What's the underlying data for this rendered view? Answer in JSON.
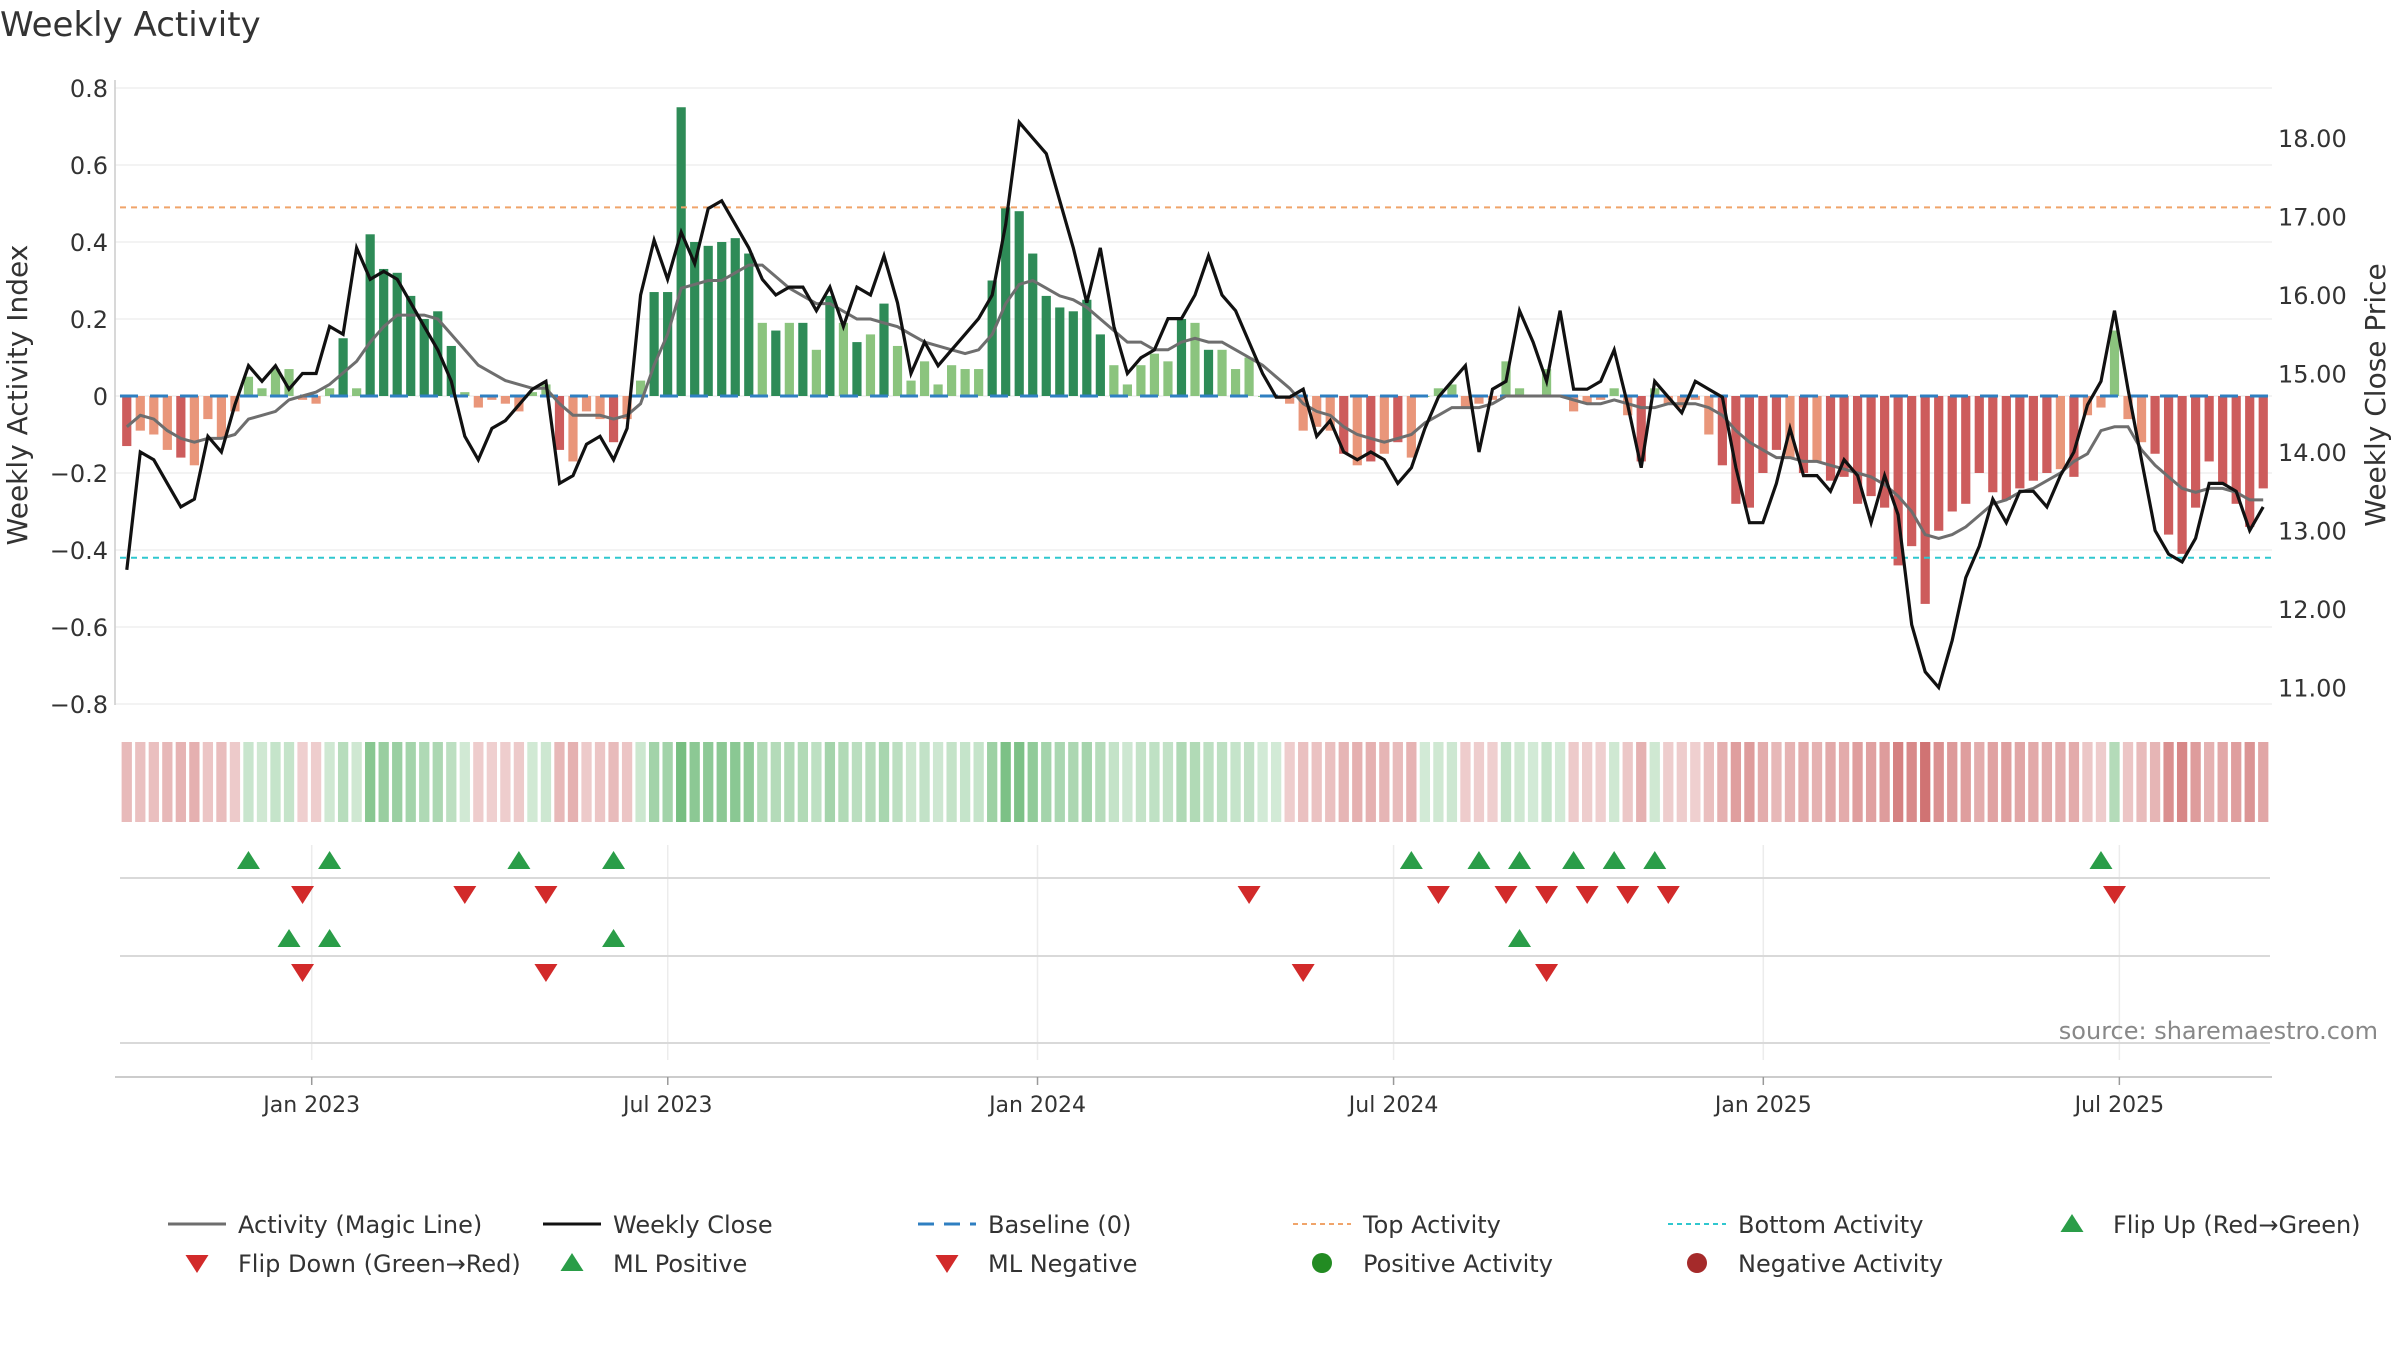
{
  "chart_data": {
    "type": "bar",
    "title": "Weekly Activity",
    "ylabel_left": "Weekly Activity Index",
    "ylabel_right": "Weekly Close Price",
    "source": "source: sharemaestro.com",
    "ylim_left": [
      -0.8,
      0.8
    ],
    "yticks_left": [
      0.8,
      0.6,
      0.4,
      0.2,
      0,
      -0.2,
      -0.4,
      -0.6,
      -0.8
    ],
    "yticks_left_labels": [
      "0.8",
      "0.6",
      "0.4",
      "0.2",
      "0",
      "−0.2",
      "−0.4",
      "−0.6",
      "−0.8"
    ],
    "ylim_right": [
      10.8,
      18.8
    ],
    "yticks_right": [
      18,
      17,
      16,
      15,
      14,
      13,
      12,
      11
    ],
    "yticks_right_labels": [
      "18.00",
      "17.00",
      "16.00",
      "15.00",
      "14.00",
      "13.00",
      "12.00",
      "11.00"
    ],
    "xticks": [
      {
        "week": 14,
        "label": "Jan 2023"
      },
      {
        "week": 40,
        "label": "Jul 2023"
      },
      {
        "week": 67,
        "label": "Jan 2024"
      },
      {
        "week": 93,
        "label": "Jul 2024"
      },
      {
        "week": 120,
        "label": "Jan 2025"
      },
      {
        "week": 146,
        "label": "Jul 2025"
      }
    ],
    "x_range_weeks": [
      0,
      157
    ],
    "top_activity": 0.49,
    "bottom_activity": -0.42,
    "baseline": 0,
    "activity": [
      -0.13,
      -0.09,
      -0.1,
      -0.14,
      -0.16,
      -0.18,
      -0.06,
      -0.11,
      -0.04,
      0.05,
      0.02,
      0.07,
      0.07,
      -0.01,
      -0.02,
      0.02,
      0.15,
      0.02,
      0.42,
      0.33,
      0.32,
      0.26,
      0.2,
      0.22,
      0.13,
      0.01,
      -0.03,
      -0.01,
      -0.02,
      -0.04,
      0.01,
      0.03,
      -0.14,
      -0.17,
      -0.04,
      -0.06,
      -0.12,
      -0.06,
      0.04,
      0.27,
      0.27,
      0.75,
      0.4,
      0.39,
      0.4,
      0.41,
      0.37,
      0.19,
      0.17,
      0.19,
      0.19,
      0.12,
      0.26,
      0.19,
      0.14,
      0.16,
      0.24,
      0.13,
      0.04,
      0.09,
      0.03,
      0.08,
      0.07,
      0.07,
      0.3,
      0.49,
      0.48,
      0.37,
      0.26,
      0.23,
      0.22,
      0.25,
      0.16,
      0.08,
      0.03,
      0.08,
      0.11,
      0.09,
      0.2,
      0.19,
      0.12,
      0.12,
      0.07,
      0.1,
      0.0,
      0.0,
      -0.02,
      -0.09,
      -0.08,
      -0.09,
      -0.15,
      -0.18,
      -0.17,
      -0.15,
      -0.12,
      -0.16,
      0.0,
      0.02,
      0.03,
      -0.03,
      -0.02,
      -0.01,
      0.09,
      0.02,
      0.0,
      0.07,
      0.0,
      -0.04,
      -0.02,
      -0.01,
      0.02,
      -0.05,
      -0.17,
      0.02,
      -0.02,
      -0.03,
      -0.01,
      -0.1,
      -0.18,
      -0.28,
      -0.29,
      -0.2,
      -0.14,
      -0.16,
      -0.2,
      -0.17,
      -0.22,
      -0.21,
      -0.28,
      -0.26,
      -0.29,
      -0.44,
      -0.39,
      -0.54,
      -0.35,
      -0.3,
      -0.28,
      -0.2,
      -0.25,
      -0.27,
      -0.24,
      -0.22,
      -0.2,
      -0.19,
      -0.21,
      -0.05,
      -0.03,
      0.17,
      -0.06,
      -0.12,
      -0.15,
      -0.36,
      -0.41,
      -0.29,
      -0.17,
      -0.23,
      -0.28,
      -0.34,
      -0.24
    ],
    "series": [
      {
        "name": "Activity (Magic Line)",
        "values": [
          -0.08,
          -0.05,
          -0.06,
          -0.09,
          -0.11,
          -0.12,
          -0.11,
          -0.11,
          -0.1,
          -0.06,
          -0.05,
          -0.04,
          -0.01,
          0.0,
          0.01,
          0.03,
          0.06,
          0.09,
          0.14,
          0.18,
          0.21,
          0.21,
          0.21,
          0.2,
          0.16,
          0.12,
          0.08,
          0.06,
          0.04,
          0.03,
          0.02,
          0.02,
          -0.02,
          -0.05,
          -0.05,
          -0.05,
          -0.06,
          -0.05,
          -0.02,
          0.08,
          0.16,
          0.28,
          0.29,
          0.3,
          0.3,
          0.32,
          0.34,
          0.34,
          0.31,
          0.28,
          0.26,
          0.24,
          0.24,
          0.22,
          0.2,
          0.2,
          0.19,
          0.18,
          0.16,
          0.14,
          0.13,
          0.12,
          0.11,
          0.12,
          0.16,
          0.24,
          0.29,
          0.3,
          0.28,
          0.26,
          0.25,
          0.23,
          0.2,
          0.17,
          0.14,
          0.14,
          0.12,
          0.12,
          0.14,
          0.15,
          0.14,
          0.14,
          0.12,
          0.1,
          0.08,
          0.05,
          0.02,
          -0.02,
          -0.04,
          -0.05,
          -0.08,
          -0.1,
          -0.11,
          -0.12,
          -0.11,
          -0.1,
          -0.07,
          -0.05,
          -0.03,
          -0.03,
          -0.03,
          -0.02,
          0.0,
          0.0,
          0.0,
          0.0,
          0.0,
          -0.01,
          -0.02,
          -0.02,
          -0.01,
          -0.02,
          -0.03,
          -0.03,
          -0.02,
          -0.02,
          -0.02,
          -0.03,
          -0.05,
          -0.09,
          -0.12,
          -0.14,
          -0.16,
          -0.16,
          -0.17,
          -0.17,
          -0.18,
          -0.19,
          -0.2,
          -0.21,
          -0.23,
          -0.26,
          -0.3,
          -0.36,
          -0.37,
          -0.36,
          -0.34,
          -0.31,
          -0.28,
          -0.27,
          -0.25,
          -0.24,
          -0.22,
          -0.2,
          -0.17,
          -0.15,
          -0.09,
          -0.08,
          -0.08,
          -0.14,
          -0.18,
          -0.21,
          -0.24,
          -0.25,
          -0.24,
          -0.24,
          -0.25,
          -0.27,
          -0.27
        ]
      },
      {
        "name": "Weekly Close",
        "values": [
          12.5,
          14.0,
          13.9,
          13.6,
          13.3,
          13.4,
          14.2,
          14.0,
          14.6,
          15.1,
          14.9,
          15.1,
          14.8,
          15.0,
          15.0,
          15.6,
          15.5,
          16.6,
          16.2,
          16.3,
          16.2,
          15.9,
          15.6,
          15.3,
          14.9,
          14.2,
          13.9,
          14.3,
          14.4,
          14.6,
          14.8,
          14.9,
          13.6,
          13.7,
          14.1,
          14.2,
          13.9,
          14.3,
          16.0,
          16.7,
          16.2,
          16.8,
          16.4,
          17.1,
          17.2,
          16.9,
          16.6,
          16.2,
          16.0,
          16.1,
          16.1,
          15.8,
          16.1,
          15.6,
          16.1,
          16.0,
          16.5,
          15.9,
          15.0,
          15.4,
          15.1,
          15.3,
          15.5,
          15.7,
          16.0,
          16.9,
          18.2,
          18.0,
          17.8,
          17.2,
          16.6,
          15.9,
          16.6,
          15.6,
          15.0,
          15.2,
          15.3,
          15.7,
          15.7,
          16.0,
          16.5,
          16.0,
          15.8,
          15.4,
          15.0,
          14.7,
          14.7,
          14.8,
          14.2,
          14.4,
          14.0,
          13.9,
          14.0,
          13.9,
          13.6,
          13.8,
          14.3,
          14.7,
          14.9,
          15.1,
          14.0,
          14.8,
          14.9,
          15.8,
          15.4,
          14.9,
          15.8,
          14.8,
          14.8,
          14.9,
          15.3,
          14.6,
          13.8,
          14.9,
          14.7,
          14.5,
          14.9,
          14.8,
          14.7,
          13.8,
          13.1,
          13.1,
          13.6,
          14.3,
          13.7,
          13.7,
          13.5,
          13.9,
          13.7,
          13.1,
          13.7,
          13.2,
          11.8,
          11.2,
          11.0,
          11.6,
          12.4,
          12.8,
          13.4,
          13.1,
          13.5,
          13.5,
          13.3,
          13.7,
          14.0,
          14.6,
          14.9,
          15.8,
          14.8,
          13.9,
          13.0,
          12.7,
          12.6,
          12.9,
          13.6,
          13.6,
          13.5,
          13.0,
          13.3
        ]
      },
      {
        "name": "Baseline (0)"
      },
      {
        "name": "Top Activity"
      },
      {
        "name": "Bottom Activity"
      }
    ],
    "signals": {
      "flip_up": [
        9,
        15,
        29,
        36,
        95,
        100,
        103,
        107,
        110,
        113,
        146
      ],
      "flip_down": [
        13,
        25,
        31,
        83,
        97,
        102,
        105,
        108,
        111,
        114,
        147
      ],
      "ml_positive": [
        12,
        15,
        36,
        103
      ],
      "ml_negative": [
        13,
        31,
        87,
        105
      ]
    },
    "legend": {
      "row1": [
        "Activity (Magic Line)",
        "Weekly Close",
        "Baseline (0)",
        "Top Activity",
        "Bottom Activity",
        "Flip Up (Red→Green)"
      ],
      "row2": [
        "Flip Down (Green→Red)",
        "ML Positive",
        "ML Negative",
        "Positive Activity",
        "Negative Activity"
      ]
    },
    "colors": {
      "magic_line": "#6e6e6e",
      "close_line": "#111111",
      "baseline": "#2f7fc1",
      "top_activity": "#f0a46a",
      "bottom_activity": "#2fc7cf",
      "flip_up": "#2a9d48",
      "flip_down": "#d22a2a",
      "positive_dark": "#2e8b57",
      "positive_light": "#8bc47e",
      "negative_dark": "#cd5c5c",
      "negative_light": "#e9967a",
      "positive_dot": "#228b22",
      "negative_dot": "#a52a2a"
    }
  }
}
